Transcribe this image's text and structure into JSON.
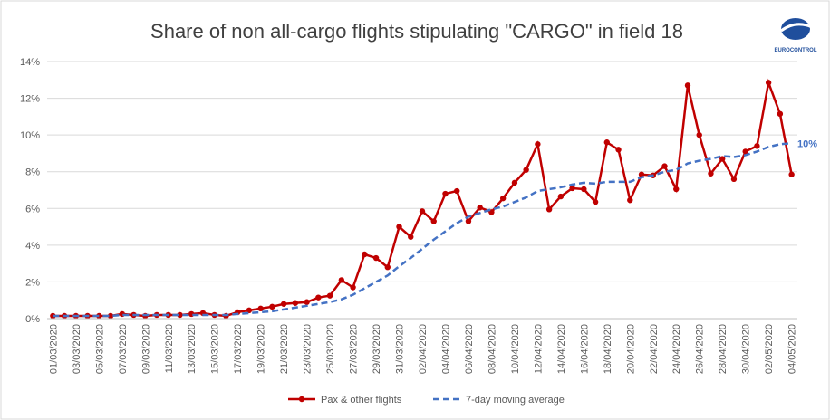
{
  "chart_data": {
    "type": "line",
    "title": "Share of non all-cargo flights stipulating \"CARGO\" in field 18",
    "logo": "EUROCONTROL",
    "annotation": "10%",
    "categories": [
      "01/03/2020",
      null,
      "03/03/2020",
      null,
      "05/03/2020",
      null,
      "07/03/2020",
      null,
      "09/03/2020",
      null,
      "11/03/2020",
      null,
      "13/03/2020",
      null,
      "15/03/2020",
      null,
      "17/03/2020",
      null,
      "19/03/2020",
      null,
      "21/03/2020",
      null,
      "23/03/2020",
      null,
      "25/03/2020",
      null,
      "27/03/2020",
      null,
      "29/03/2020",
      null,
      "31/03/2020",
      null,
      "02/04/2020",
      null,
      "04/04/2020",
      null,
      "06/04/2020",
      null,
      "08/04/2020",
      null,
      "10/04/2020",
      null,
      "12/04/2020",
      null,
      "14/04/2020",
      null,
      "16/04/2020",
      null,
      "18/04/2020",
      null,
      "20/04/2020",
      null,
      "22/04/2020",
      null,
      "24/04/2020",
      null,
      "26/04/2020",
      null,
      "28/04/2020",
      null,
      "30/04/2020",
      null,
      "02/05/2020",
      null,
      "04/05/2020"
    ],
    "series": [
      {
        "name": "Pax & other flights",
        "color": "#c00000",
        "style": "solid",
        "markers": true,
        "values": [
          0.15,
          0.15,
          0.15,
          0.15,
          0.15,
          0.15,
          0.25,
          0.2,
          0.15,
          0.2,
          0.2,
          0.2,
          0.25,
          0.3,
          0.2,
          0.15,
          0.35,
          0.45,
          0.55,
          0.65,
          0.8,
          0.85,
          0.9,
          1.15,
          1.25,
          2.1,
          1.7,
          3.5,
          3.3,
          2.8,
          5.0,
          4.45,
          5.85,
          5.3,
          6.8,
          6.95,
          5.3,
          6.05,
          5.8,
          6.55,
          7.4,
          8.1,
          9.5,
          5.95,
          6.65,
          7.1,
          7.05,
          6.35,
          9.6,
          9.2,
          6.45,
          7.85,
          7.8,
          8.3,
          7.05,
          12.7,
          10.0,
          7.9,
          8.7,
          7.6,
          9.1,
          9.4,
          12.85,
          11.15,
          7.85
        ]
      },
      {
        "name": "7-day moving average",
        "color": "#4472c4",
        "style": "dashed",
        "markers": false,
        "values": [
          0.15,
          0.15,
          0.15,
          0.15,
          0.15,
          0.15,
          0.2,
          0.2,
          0.2,
          0.2,
          0.2,
          0.2,
          0.2,
          0.2,
          0.2,
          0.2,
          0.25,
          0.3,
          0.35,
          0.4,
          0.5,
          0.6,
          0.7,
          0.8,
          0.9,
          1.05,
          1.3,
          1.65,
          2.0,
          2.35,
          2.85,
          3.3,
          3.8,
          4.3,
          4.75,
          5.2,
          5.55,
          5.75,
          5.95,
          6.1,
          6.35,
          6.6,
          6.95,
          7.05,
          7.15,
          7.3,
          7.4,
          7.35,
          7.45,
          7.45,
          7.45,
          7.7,
          7.8,
          8.0,
          8.1,
          8.45,
          8.6,
          8.7,
          8.85,
          8.8,
          8.9,
          9.1,
          9.35,
          9.5,
          9.55
        ]
      }
    ],
    "ylim": [
      0,
      14
    ],
    "yticks": [
      {
        "value": 0,
        "label": "0%"
      },
      {
        "value": 2,
        "label": "2%"
      },
      {
        "value": 4,
        "label": "4%"
      },
      {
        "value": 6,
        "label": "6%"
      },
      {
        "value": 8,
        "label": "8%"
      },
      {
        "value": 10,
        "label": "10%"
      },
      {
        "value": 12,
        "label": "12%"
      },
      {
        "value": 14,
        "label": "14%"
      }
    ],
    "grid": true,
    "legend": "bottom"
  }
}
